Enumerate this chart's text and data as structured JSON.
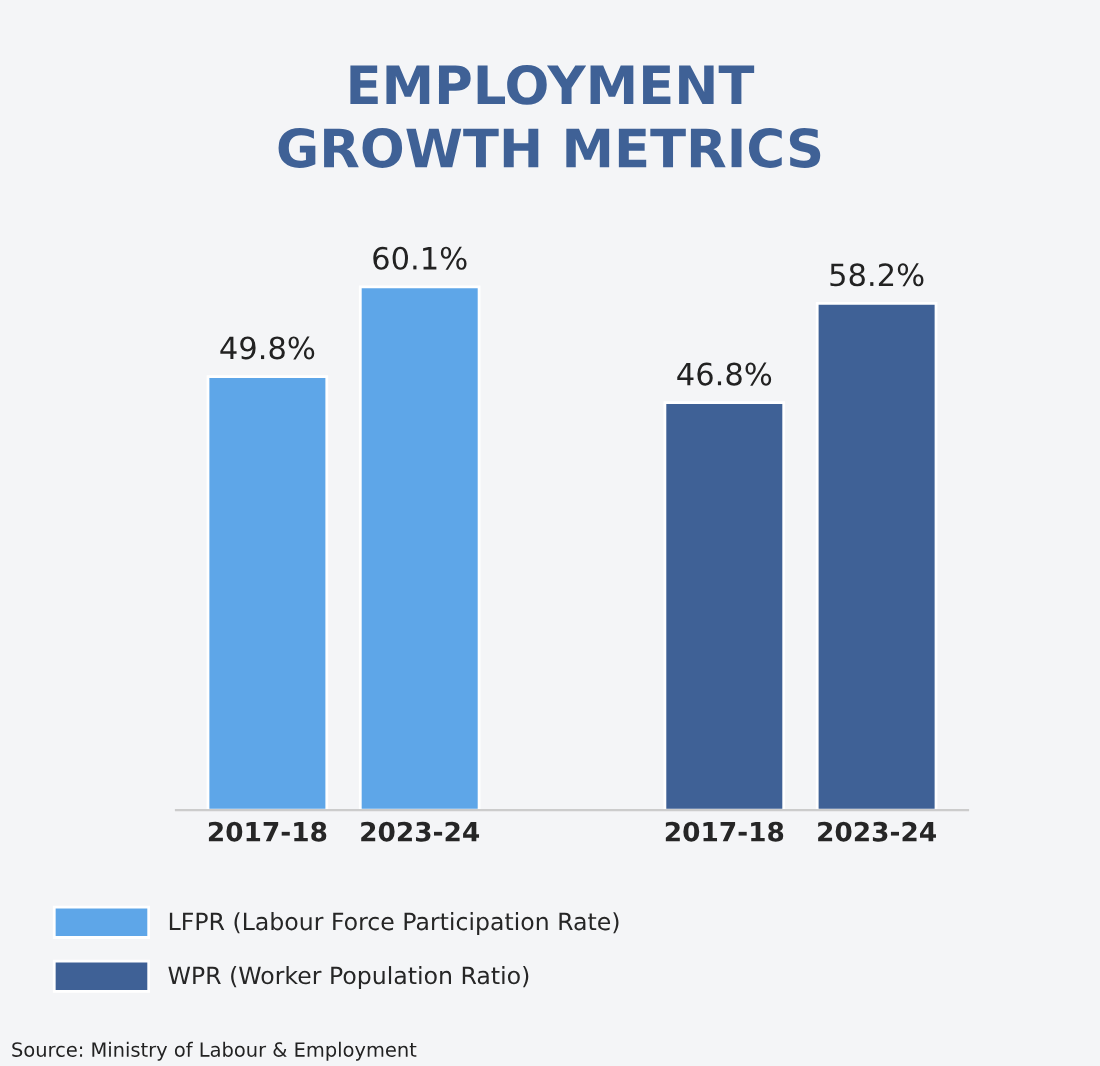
{
  "chart_data": {
    "type": "bar",
    "title": "EMPLOYMENT\nGROWTH METRICS",
    "categories": [
      "2017-18",
      "2023-24",
      null,
      "2017-18",
      "2023-24"
    ],
    "series": [
      {
        "name": "LFPR (Labour Force Participation Rate)",
        "color": "#5ea6e8",
        "values": [
          49.8,
          60.1,
          null,
          null,
          null
        ],
        "value_labels": [
          "49.8%",
          "60.1%",
          null,
          null,
          null
        ]
      },
      {
        "name": "WPR (Worker Population Ratio)",
        "color": "#3f6196",
        "values": [
          null,
          null,
          null,
          46.8,
          58.2
        ],
        "value_labels": [
          null,
          null,
          null,
          "46.8%",
          "58.2%"
        ]
      }
    ],
    "legend": "bottom left",
    "annotations": [
      "Source: Ministry of Labour & Employment"
    ]
  }
}
